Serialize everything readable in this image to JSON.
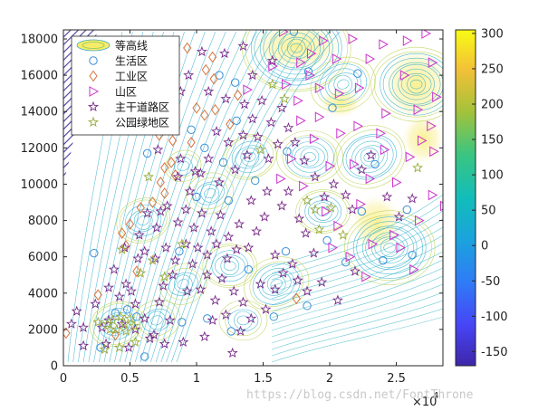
{
  "chart_data": {
    "type": "contour+scatter",
    "x_range": [
      0,
      28500
    ],
    "y_range": [
      0,
      18500
    ],
    "x_ticks": [
      "0",
      "0.5",
      "1",
      "1.5",
      "2",
      "2.5"
    ],
    "x_tick_values": [
      0,
      5000,
      10000,
      15000,
      20000,
      25000
    ],
    "x_exponent_base": "×10",
    "x_exponent_power": "4",
    "y_ticks": [
      "0",
      "2000",
      "4000",
      "6000",
      "8000",
      "10000",
      "12000",
      "14000",
      "16000",
      "18000"
    ],
    "y_tick_values": [
      0,
      2000,
      4000,
      6000,
      8000,
      10000,
      12000,
      14000,
      16000,
      18000
    ],
    "colorbar": {
      "ticks": [
        "300",
        "250",
        "200",
        "150",
        "100",
        "50",
        "0",
        "-50",
        "-100",
        "-150"
      ],
      "tick_values": [
        300,
        250,
        200,
        150,
        100,
        50,
        0,
        -50,
        -100,
        -150
      ],
      "range": [
        -170,
        305
      ]
    },
    "legend": [
      {
        "label": "等高线",
        "marker": "contour"
      },
      {
        "label": "生活区",
        "marker": "circle",
        "color": "#3a8fd8"
      },
      {
        "label": "工业区",
        "marker": "diamond",
        "color": "#d9733c"
      },
      {
        "label": "山区",
        "marker": "triangle",
        "color": "#cc33cc"
      },
      {
        "label": "主干道路区",
        "marker": "star",
        "color": "#7a2a8a"
      },
      {
        "label": "公园绿地区",
        "marker": "star",
        "color": "#9aaa3a"
      }
    ],
    "legend_position": "top-left",
    "series": [
      {
        "name": "生活区",
        "points": [
          [
            2300,
            6200
          ],
          [
            3900,
            2900
          ],
          [
            5500,
            2700
          ],
          [
            8900,
            2400
          ],
          [
            10800,
            2600
          ],
          [
            12600,
            1900
          ],
          [
            13900,
            5300
          ],
          [
            16700,
            6300
          ],
          [
            11700,
            16000
          ],
          [
            12900,
            15600
          ],
          [
            13000,
            13500
          ],
          [
            10600,
            12000
          ],
          [
            17300,
            18400
          ],
          [
            18400,
            16200
          ],
          [
            22400,
            8500
          ],
          [
            24000,
            5800
          ],
          [
            26200,
            6100
          ],
          [
            25800,
            8600
          ],
          [
            21200,
            5700
          ],
          [
            18300,
            3300
          ],
          [
            8700,
            6300
          ],
          [
            6300,
            11700
          ],
          [
            10000,
            9300
          ],
          [
            16800,
            11800
          ],
          [
            22100,
            16100
          ],
          [
            20200,
            14200
          ],
          [
            14400,
            10200
          ],
          [
            12400,
            9100
          ],
          [
            2800,
            1000
          ],
          [
            6100,
            500
          ],
          [
            19800,
            6900
          ],
          [
            23400,
            11100
          ],
          [
            9600,
            13000
          ],
          [
            12000,
            11200
          ],
          [
            4800,
            3100
          ],
          [
            15800,
            2700
          ]
        ]
      },
      {
        "name": "工业区",
        "points": [
          [
            200,
            1800
          ],
          [
            2600,
            3900
          ],
          [
            4400,
            7300
          ],
          [
            4700,
            6600
          ],
          [
            5000,
            7800
          ],
          [
            5500,
            5200
          ],
          [
            5800,
            8700
          ],
          [
            6700,
            9000
          ],
          [
            7300,
            10100
          ],
          [
            7600,
            10900
          ],
          [
            8100,
            11200
          ],
          [
            8400,
            10500
          ],
          [
            8200,
            12400
          ],
          [
            9600,
            12300
          ],
          [
            10000,
            14200
          ],
          [
            10600,
            13800
          ],
          [
            11400,
            14100
          ],
          [
            13100,
            14900
          ],
          [
            11300,
            15800
          ],
          [
            11200,
            17000
          ],
          [
            10700,
            16300
          ],
          [
            9300,
            17500
          ],
          [
            12500,
            13300
          ],
          [
            17500,
            3700
          ],
          [
            7200,
            12700
          ],
          [
            7600,
            9500
          ],
          [
            3900,
            1700
          ]
        ]
      },
      {
        "name": "山区",
        "points": [
          [
            16500,
            18400
          ],
          [
            19500,
            17900
          ],
          [
            21700,
            18000
          ],
          [
            24000,
            17700
          ],
          [
            25800,
            17900
          ],
          [
            27200,
            18300
          ],
          [
            18600,
            17200
          ],
          [
            20500,
            16900
          ],
          [
            17800,
            16700
          ],
          [
            15700,
            16500
          ],
          [
            18500,
            16000
          ],
          [
            16700,
            15500
          ],
          [
            13800,
            15200
          ],
          [
            20700,
            15000
          ],
          [
            22200,
            15300
          ],
          [
            25600,
            16000
          ],
          [
            27700,
            16700
          ],
          [
            26600,
            14100
          ],
          [
            28000,
            14800
          ],
          [
            27600,
            13200
          ],
          [
            27800,
            11800
          ],
          [
            26900,
            12400
          ],
          [
            24200,
            13900
          ],
          [
            23800,
            12800
          ],
          [
            22100,
            13200
          ],
          [
            20800,
            12800
          ],
          [
            20000,
            11000
          ],
          [
            18800,
            12500
          ],
          [
            17800,
            13500
          ],
          [
            17600,
            14600
          ],
          [
            19200,
            13700
          ],
          [
            21800,
            11100
          ],
          [
            17100,
            11400
          ],
          [
            16300,
            10300
          ],
          [
            18000,
            9900
          ],
          [
            23000,
            10300
          ],
          [
            25000,
            10100
          ],
          [
            26000,
            11500
          ],
          [
            27700,
            9400
          ],
          [
            28600,
            8800
          ],
          [
            26700,
            8000
          ],
          [
            24800,
            7200
          ],
          [
            23200,
            6700
          ],
          [
            25300,
            6500
          ],
          [
            26300,
            5300
          ],
          [
            21500,
            6000
          ],
          [
            20200,
            6500
          ],
          [
            22700,
            4900
          ],
          [
            19700,
            8500
          ],
          [
            20600,
            7700
          ],
          [
            22300,
            8900
          ],
          [
            24100,
            11900
          ],
          [
            19200,
            15300
          ],
          [
            23000,
            16900
          ]
        ]
      },
      {
        "name": "主干道路区",
        "points": [
          [
            1000,
            3000
          ],
          [
            1500,
            2100
          ],
          [
            2400,
            3400
          ],
          [
            2900,
            2100
          ],
          [
            3400,
            4300
          ],
          [
            3800,
            5300
          ],
          [
            4200,
            3800
          ],
          [
            4700,
            4500
          ],
          [
            5100,
            4100
          ],
          [
            5400,
            3400
          ],
          [
            6100,
            2600
          ],
          [
            5400,
            2000
          ],
          [
            6800,
            1700
          ],
          [
            7200,
            3500
          ],
          [
            7500,
            4400
          ],
          [
            8000,
            2500
          ],
          [
            8200,
            5000
          ],
          [
            9300,
            4100
          ],
          [
            9700,
            5600
          ],
          [
            10300,
            4200
          ],
          [
            10800,
            5000
          ],
          [
            11400,
            3600
          ],
          [
            11900,
            4800
          ],
          [
            12200,
            2800
          ],
          [
            12800,
            4100
          ],
          [
            13500,
            3500
          ],
          [
            14100,
            2600
          ],
          [
            14800,
            4500
          ],
          [
            15200,
            3100
          ],
          [
            15900,
            4200
          ],
          [
            16500,
            5100
          ],
          [
            17200,
            5600
          ],
          [
            17600,
            4700
          ],
          [
            18300,
            4100
          ],
          [
            19400,
            4600
          ],
          [
            18800,
            6200
          ],
          [
            18200,
            7300
          ],
          [
            17700,
            8100
          ],
          [
            16400,
            8800
          ],
          [
            15100,
            8200
          ],
          [
            14500,
            7400
          ],
          [
            13900,
            6500
          ],
          [
            13200,
            7800
          ],
          [
            12400,
            7100
          ],
          [
            11800,
            8300
          ],
          [
            11100,
            7400
          ],
          [
            10400,
            8400
          ],
          [
            9800,
            7600
          ],
          [
            9200,
            8600
          ],
          [
            8600,
            7900
          ],
          [
            7800,
            8800
          ],
          [
            7000,
            7600
          ],
          [
            6300,
            8400
          ],
          [
            5700,
            7200
          ],
          [
            6100,
            6300
          ],
          [
            6900,
            5900
          ],
          [
            7700,
            6500
          ],
          [
            8400,
            5800
          ],
          [
            9200,
            6700
          ],
          [
            10100,
            6500
          ],
          [
            10800,
            6100
          ],
          [
            11500,
            6700
          ],
          [
            12300,
            5900
          ],
          [
            13000,
            6400
          ],
          [
            7100,
            11900
          ],
          [
            8800,
            11400
          ],
          [
            9900,
            10700
          ],
          [
            10900,
            11400
          ],
          [
            11700,
            10100
          ],
          [
            12900,
            10800
          ],
          [
            13800,
            11600
          ],
          [
            14600,
            12600
          ],
          [
            15400,
            11400
          ],
          [
            16100,
            12200
          ],
          [
            16900,
            13100
          ],
          [
            15600,
            13400
          ],
          [
            14900,
            14600
          ],
          [
            14200,
            13600
          ],
          [
            13500,
            12700
          ],
          [
            12400,
            12300
          ],
          [
            11500,
            12900
          ],
          [
            10300,
            10600
          ],
          [
            9500,
            9600
          ],
          [
            8600,
            10400
          ],
          [
            7300,
            8500
          ],
          [
            15700,
            16800
          ],
          [
            14200,
            16000
          ],
          [
            13500,
            17600
          ],
          [
            12100,
            17200
          ],
          [
            10400,
            17300
          ],
          [
            9400,
            16000
          ],
          [
            8800,
            15100
          ],
          [
            10900,
            15100
          ],
          [
            12200,
            14700
          ],
          [
            13600,
            14400
          ],
          [
            16400,
            14200
          ],
          [
            17400,
            12300
          ],
          [
            18100,
            11300
          ],
          [
            18900,
            10400
          ],
          [
            19600,
            9300
          ],
          [
            20300,
            10000
          ],
          [
            21200,
            9400
          ],
          [
            21700,
            8600
          ],
          [
            22400,
            10800
          ],
          [
            23100,
            11600
          ],
          [
            24300,
            9300
          ],
          [
            25200,
            8200
          ],
          [
            26200,
            9200
          ],
          [
            20600,
            3600
          ],
          [
            21900,
            5200
          ],
          [
            15900,
            6100
          ],
          [
            16900,
            9600
          ],
          [
            15300,
            9600
          ],
          [
            14100,
            9100
          ],
          [
            3200,
            1200
          ],
          [
            4900,
            1000
          ],
          [
            6500,
            1500
          ],
          [
            7600,
            1200
          ],
          [
            9000,
            1300
          ],
          [
            10600,
            1600
          ],
          [
            11200,
            2500
          ],
          [
            12700,
            700
          ],
          [
            13300,
            1900
          ],
          [
            1500,
            1100
          ],
          [
            600,
            2300
          ],
          [
            5600,
            5900
          ],
          [
            4600,
            6500
          ],
          [
            3400,
            2500
          ],
          [
            4400,
            2300
          ]
        ]
      },
      {
        "name": "公园绿地区",
        "points": [
          [
            2600,
            2400
          ],
          [
            3300,
            2300
          ],
          [
            3500,
            2000
          ],
          [
            3700,
            2500
          ],
          [
            4000,
            2000
          ],
          [
            4300,
            2700
          ],
          [
            4600,
            2300
          ],
          [
            5000,
            2600
          ],
          [
            3100,
            900
          ],
          [
            4200,
            1000
          ],
          [
            4700,
            1900
          ],
          [
            5300,
            2200
          ],
          [
            5400,
            1300
          ],
          [
            4400,
            6400
          ],
          [
            5800,
            5100
          ],
          [
            6700,
            5800
          ],
          [
            7600,
            4900
          ],
          [
            14800,
            11900
          ],
          [
            15700,
            15500
          ],
          [
            16600,
            14700
          ],
          [
            18300,
            9100
          ],
          [
            19200,
            7500
          ],
          [
            20100,
            8700
          ],
          [
            21000,
            7200
          ],
          [
            26600,
            10900
          ],
          [
            18900,
            8600
          ],
          [
            6400,
            10400
          ],
          [
            8900,
            6700
          ]
        ]
      }
    ]
  },
  "watermark": "https://blog.csdn.net/FontThrone"
}
